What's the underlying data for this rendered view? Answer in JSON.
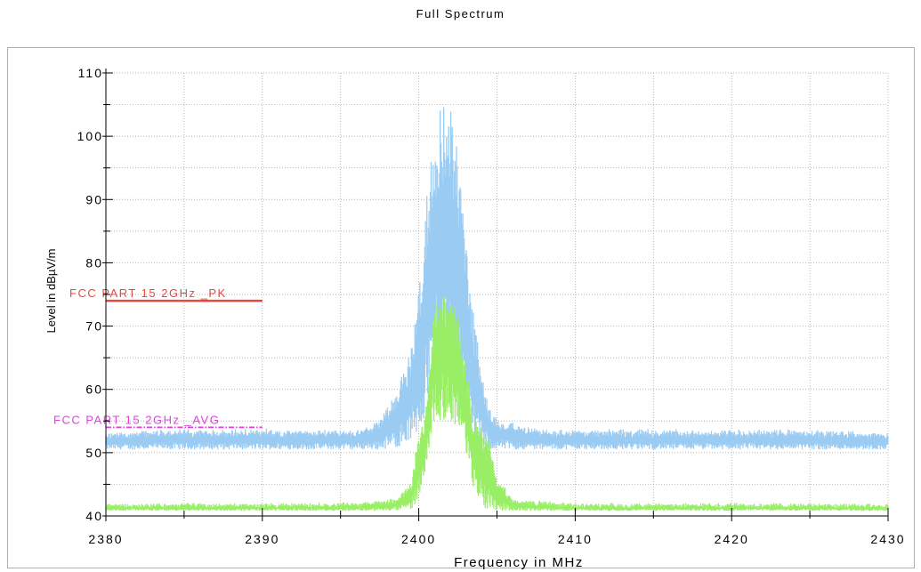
{
  "chart_data": {
    "type": "line",
    "title": "Full Spectrum",
    "xlabel": "Frequency in MHz",
    "ylabel": "Level in dBµV/m",
    "xlim": [
      2380,
      2430
    ],
    "ylim": [
      40,
      110
    ],
    "x_ticks": [
      2380,
      2390,
      2400,
      2410,
      2420,
      2430
    ],
    "y_ticks": [
      40,
      50,
      60,
      70,
      80,
      90,
      100,
      110
    ],
    "grid": true,
    "limit_lines": [
      {
        "name": "FCC PART 15 2GHz _PK",
        "value": 74,
        "x_range": [
          2380,
          2390
        ],
        "color": "#e8473b",
        "style": "solid"
      },
      {
        "name": "FCC PART 15 2GHz _AVG",
        "value": 54,
        "x_range": [
          2380,
          2390
        ],
        "color": "#e040e0",
        "style": "dashdot"
      }
    ],
    "series": [
      {
        "color": "#99cbf3",
        "x": [
          2380,
          2384,
          2388,
          2392,
          2396,
          2397.5,
          2398.5,
          2399.5,
          2400,
          2400.5,
          2401,
          2401.5,
          2402,
          2402.5,
          2403,
          2403.5,
          2404,
          2404.5,
          2405,
          2406,
          2408,
          2412,
          2416,
          2420,
          2424,
          2430
        ],
        "low": [
          50.5,
          50.5,
          50.5,
          50.5,
          50.5,
          50.5,
          50.8,
          51.5,
          53,
          56,
          60,
          62,
          62,
          58,
          54,
          51.5,
          50.8,
          50.5,
          50.5,
          50.5,
          50.5,
          50.5,
          50.5,
          50.5,
          50.5,
          50.5
        ],
        "high": [
          53,
          53.5,
          53.5,
          53.5,
          53.5,
          55,
          59,
          66,
          76,
          90,
          101,
          105.5,
          105,
          98,
          84,
          72,
          63,
          57,
          55,
          54.5,
          53.5,
          53.5,
          53.5,
          53.5,
          53.5,
          53
        ]
      },
      {
        "color": "#99ee66",
        "x": [
          2380,
          2384,
          2388,
          2392,
          2396,
          2398.5,
          2399.5,
          2399.8,
          2400.3,
          2400.6,
          2401,
          2401.5,
          2402,
          2402.5,
          2403,
          2403.4,
          2404,
          2404.5,
          2405,
          2406,
          2410,
          2414,
          2418,
          2422,
          2426,
          2430
        ],
        "low": [
          40.8,
          40.8,
          40.8,
          40.8,
          40.8,
          40.8,
          41,
          42,
          45,
          50,
          55,
          55,
          55,
          54,
          50,
          45,
          41.5,
          41,
          40.8,
          40.8,
          40.8,
          40.8,
          40.8,
          40.8,
          40.8,
          40.8
        ],
        "high": [
          41.7,
          41.8,
          41.8,
          41.8,
          42,
          42.5,
          45,
          50,
          55,
          62,
          73,
          76.5,
          75,
          72,
          65,
          56,
          54,
          52,
          46,
          42.5,
          41.8,
          41.8,
          41.8,
          41.8,
          41.8,
          41.7
        ]
      }
    ]
  }
}
